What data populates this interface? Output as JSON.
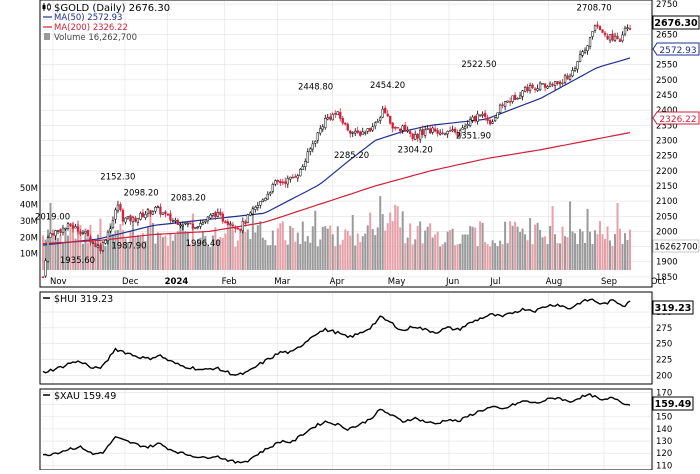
{
  "panels": {
    "main": {
      "header": {
        "symbol_label": "$GOLD (Daily) 2676.30",
        "ma50_label": "MA(50) 2572.93",
        "ma200_label": "MA(200) 2326.22",
        "volume_label": "Volume 16,262,700"
      },
      "last_price_tag": "2676.30",
      "ma50_tag": "2572.93",
      "ma200_tag": "2326.22",
      "volume_tag": "16262700"
    },
    "hui": {
      "label": "$HUI 319.23",
      "last_tag": "319.23"
    },
    "xau": {
      "label": "$XAU 159.49",
      "last_tag": "159.49"
    }
  },
  "colors": {
    "up": "#000000",
    "down": "#d0203a",
    "ma50": "#1f2f8f",
    "ma200": "#d0203a",
    "vol_up": "#9a9a9a",
    "vol_down": "#e6a0a8",
    "grid": "#e2e2e2",
    "tag_ma50": "#1f2f8f"
  },
  "chart_data": [
    {
      "type": "candlestick",
      "title": "$GOLD (Daily) 2676.30",
      "x_tick_labels": [
        "Nov",
        "Dec",
        "2024",
        "Feb",
        "Mar",
        "Apr",
        "May",
        "Jun",
        "Jul",
        "Aug",
        "Sep",
        "Oct"
      ],
      "x_tick_pos": [
        0.0,
        0.13,
        0.207,
        0.31,
        0.405,
        0.505,
        0.61,
        0.715,
        0.795,
        0.895,
        0.995,
        1.085
      ],
      "ylim": [
        1820,
        2760
      ],
      "y_ticks": [
        1850,
        1900,
        1950,
        2000,
        2050,
        2100,
        2150,
        2200,
        2250,
        2300,
        2350,
        2400,
        2450,
        2500,
        2550,
        2600,
        2650,
        2700,
        2750
      ],
      "close_anchors": [
        [
          0.0,
          1850
        ],
        [
          0.01,
          1990
        ],
        [
          0.05,
          2019
        ],
        [
          0.075,
          1995
        ],
        [
          0.095,
          1955
        ],
        [
          0.105,
          1945
        ],
        [
          0.115,
          1990
        ],
        [
          0.125,
          2030
        ],
        [
          0.135,
          2090
        ],
        [
          0.145,
          2040
        ],
        [
          0.165,
          2040
        ],
        [
          0.185,
          2060
        ],
        [
          0.205,
          2075
        ],
        [
          0.23,
          2040
        ],
        [
          0.25,
          2030
        ],
        [
          0.27,
          2020
        ],
        [
          0.29,
          2030
        ],
        [
          0.31,
          2060
        ],
        [
          0.325,
          2040
        ],
        [
          0.34,
          2030
        ],
        [
          0.355,
          2010
        ],
        [
          0.37,
          2045
        ],
        [
          0.395,
          2100
        ],
        [
          0.42,
          2160
        ],
        [
          0.445,
          2170
        ],
        [
          0.465,
          2200
        ],
        [
          0.49,
          2300
        ],
        [
          0.51,
          2370
        ],
        [
          0.53,
          2390
        ],
        [
          0.55,
          2340
        ],
        [
          0.565,
          2320
        ],
        [
          0.58,
          2330
        ],
        [
          0.6,
          2350
        ],
        [
          0.615,
          2400
        ],
        [
          0.635,
          2340
        ],
        [
          0.655,
          2340
        ],
        [
          0.67,
          2310
        ],
        [
          0.69,
          2335
        ],
        [
          0.71,
          2330
        ],
        [
          0.73,
          2330
        ],
        [
          0.75,
          2320
        ],
        [
          0.77,
          2360
        ],
        [
          0.79,
          2390
        ],
        [
          0.81,
          2360
        ],
        [
          0.83,
          2420
        ],
        [
          0.85,
          2440
        ],
        [
          0.87,
          2470
        ],
        [
          0.89,
          2480
        ],
        [
          0.91,
          2480
        ],
        [
          0.93,
          2490
        ],
        [
          0.95,
          2510
        ],
        [
          0.965,
          2560
        ],
        [
          0.98,
          2600
        ],
        [
          0.99,
          2650
        ],
        [
          1.0,
          2690
        ],
        [
          1.01,
          2650
        ],
        [
          1.02,
          2640
        ],
        [
          1.03,
          2640
        ],
        [
          1.04,
          2620
        ],
        [
          1.05,
          2660
        ],
        [
          1.06,
          2676
        ]
      ],
      "annotations": [
        {
          "x": 0.01,
          "label": "2019.00",
          "price": 2019,
          "pos": "above"
        },
        {
          "x": 0.055,
          "label": "1935.60",
          "price": 1932,
          "pos": "below"
        },
        {
          "x": 0.128,
          "label": "2152.30",
          "price": 2152,
          "pos": "above"
        },
        {
          "x": 0.148,
          "label": "1987.90",
          "price": 1980,
          "pos": "below"
        },
        {
          "x": 0.17,
          "label": "2098.20",
          "price": 2098,
          "pos": "above"
        },
        {
          "x": 0.255,
          "label": "2083.20",
          "price": 2083,
          "pos": "above"
        },
        {
          "x": 0.282,
          "label": "1996.40",
          "price": 1988,
          "pos": "below"
        },
        {
          "x": 0.485,
          "label": "2448.80",
          "price": 2449,
          "pos": "above"
        },
        {
          "x": 0.55,
          "label": "2285.20",
          "price": 2278,
          "pos": "below"
        },
        {
          "x": 0.615,
          "label": "2454.20",
          "price": 2454,
          "pos": "above"
        },
        {
          "x": 0.665,
          "label": "2304.20",
          "price": 2297,
          "pos": "below"
        },
        {
          "x": 0.77,
          "label": "2351.90",
          "price": 2343,
          "pos": "below"
        },
        {
          "x": 0.78,
          "label": "2522.50",
          "price": 2523,
          "pos": "above"
        },
        {
          "x": 0.988,
          "label": "2708.70",
          "price": 2709,
          "pos": "above"
        }
      ],
      "series": [
        {
          "name": "MA(50) 2572.93",
          "values_anchors": [
            [
              0.0,
              1955
            ],
            [
              0.1,
              1975
            ],
            [
              0.2,
              2020
            ],
            [
              0.3,
              2040
            ],
            [
              0.4,
              2060
            ],
            [
              0.5,
              2155
            ],
            [
              0.55,
              2230
            ],
            [
              0.6,
              2300
            ],
            [
              0.65,
              2330
            ],
            [
              0.7,
              2350
            ],
            [
              0.8,
              2370
            ],
            [
              0.9,
              2440
            ],
            [
              1.0,
              2540
            ],
            [
              1.06,
              2572
            ]
          ]
        },
        {
          "name": "MA(200) 2326.22",
          "values_anchors": [
            [
              0.0,
              1960
            ],
            [
              0.1,
              1970
            ],
            [
              0.2,
              1990
            ],
            [
              0.3,
              2000
            ],
            [
              0.4,
              2030
            ],
            [
              0.5,
              2090
            ],
            [
              0.6,
              2150
            ],
            [
              0.7,
              2200
            ],
            [
              0.8,
              2240
            ],
            [
              0.9,
              2270
            ],
            [
              1.0,
              2305
            ],
            [
              1.06,
              2326
            ]
          ]
        }
      ],
      "volume": {
        "label": "Volume 16,262,700",
        "ylim": [
          0,
          55000000
        ],
        "y_ticks": [
          10000000,
          20000000,
          30000000,
          40000000,
          50000000
        ],
        "y_tick_labels": [
          "10M",
          "20M",
          "30M",
          "40M",
          "50M"
        ],
        "last": 16262700
      }
    },
    {
      "type": "line",
      "title": "$HUI 319.23",
      "ylim": [
        188,
        330
      ],
      "y_ticks": [
        200,
        225,
        250,
        275,
        300
      ],
      "last": 319.23,
      "anchors": [
        [
          0.0,
          205
        ],
        [
          0.03,
          212
        ],
        [
          0.05,
          220
        ],
        [
          0.07,
          222
        ],
        [
          0.09,
          210
        ],
        [
          0.11,
          215
        ],
        [
          0.13,
          242
        ],
        [
          0.15,
          236
        ],
        [
          0.17,
          230
        ],
        [
          0.19,
          226
        ],
        [
          0.21,
          232
        ],
        [
          0.23,
          222
        ],
        [
          0.25,
          215
        ],
        [
          0.27,
          212
        ],
        [
          0.29,
          208
        ],
        [
          0.31,
          212
        ],
        [
          0.33,
          206
        ],
        [
          0.35,
          200
        ],
        [
          0.37,
          205
        ],
        [
          0.39,
          217
        ],
        [
          0.41,
          227
        ],
        [
          0.43,
          237
        ],
        [
          0.45,
          236
        ],
        [
          0.47,
          250
        ],
        [
          0.49,
          265
        ],
        [
          0.51,
          272
        ],
        [
          0.53,
          268
        ],
        [
          0.55,
          260
        ],
        [
          0.57,
          265
        ],
        [
          0.59,
          275
        ],
        [
          0.61,
          292
        ],
        [
          0.63,
          282
        ],
        [
          0.65,
          270
        ],
        [
          0.67,
          278
        ],
        [
          0.69,
          272
        ],
        [
          0.71,
          268
        ],
        [
          0.73,
          275
        ],
        [
          0.75,
          272
        ],
        [
          0.77,
          282
        ],
        [
          0.79,
          290
        ],
        [
          0.81,
          296
        ],
        [
          0.83,
          292
        ],
        [
          0.85,
          300
        ],
        [
          0.87,
          305
        ],
        [
          0.89,
          302
        ],
        [
          0.91,
          310
        ],
        [
          0.93,
          312
        ],
        [
          0.95,
          305
        ],
        [
          0.97,
          315
        ],
        [
          0.99,
          320
        ],
        [
          1.01,
          312
        ],
        [
          1.03,
          318
        ],
        [
          1.05,
          310
        ],
        [
          1.06,
          319
        ]
      ]
    },
    {
      "type": "line",
      "title": "$XAU 159.49",
      "ylim": [
        107,
        172
      ],
      "y_ticks": [
        110,
        120,
        130,
        140,
        150,
        160,
        170
      ],
      "last": 159.49,
      "anchors": [
        [
          0.0,
          118
        ],
        [
          0.03,
          121
        ],
        [
          0.05,
          124
        ],
        [
          0.07,
          125
        ],
        [
          0.09,
          119
        ],
        [
          0.11,
          121
        ],
        [
          0.13,
          133
        ],
        [
          0.15,
          130
        ],
        [
          0.17,
          127
        ],
        [
          0.19,
          125
        ],
        [
          0.21,
          128
        ],
        [
          0.23,
          123
        ],
        [
          0.25,
          120
        ],
        [
          0.27,
          118
        ],
        [
          0.29,
          116
        ],
        [
          0.31,
          118
        ],
        [
          0.33,
          115
        ],
        [
          0.35,
          112
        ],
        [
          0.37,
          114
        ],
        [
          0.39,
          120
        ],
        [
          0.41,
          125
        ],
        [
          0.43,
          130
        ],
        [
          0.45,
          129
        ],
        [
          0.47,
          136
        ],
        [
          0.49,
          142
        ],
        [
          0.51,
          146
        ],
        [
          0.53,
          144
        ],
        [
          0.55,
          140
        ],
        [
          0.57,
          143
        ],
        [
          0.59,
          148
        ],
        [
          0.61,
          156
        ],
        [
          0.63,
          151
        ],
        [
          0.65,
          146
        ],
        [
          0.67,
          149
        ],
        [
          0.69,
          146
        ],
        [
          0.71,
          144
        ],
        [
          0.73,
          148
        ],
        [
          0.75,
          146
        ],
        [
          0.77,
          151
        ],
        [
          0.79,
          155
        ],
        [
          0.81,
          158
        ],
        [
          0.83,
          156
        ],
        [
          0.85,
          160
        ],
        [
          0.87,
          163
        ],
        [
          0.89,
          161
        ],
        [
          0.91,
          164
        ],
        [
          0.93,
          166
        ],
        [
          0.95,
          162
        ],
        [
          0.97,
          166
        ],
        [
          0.99,
          168
        ],
        [
          1.01,
          163
        ],
        [
          1.03,
          166
        ],
        [
          1.05,
          161
        ],
        [
          1.06,
          159.5
        ]
      ]
    }
  ]
}
